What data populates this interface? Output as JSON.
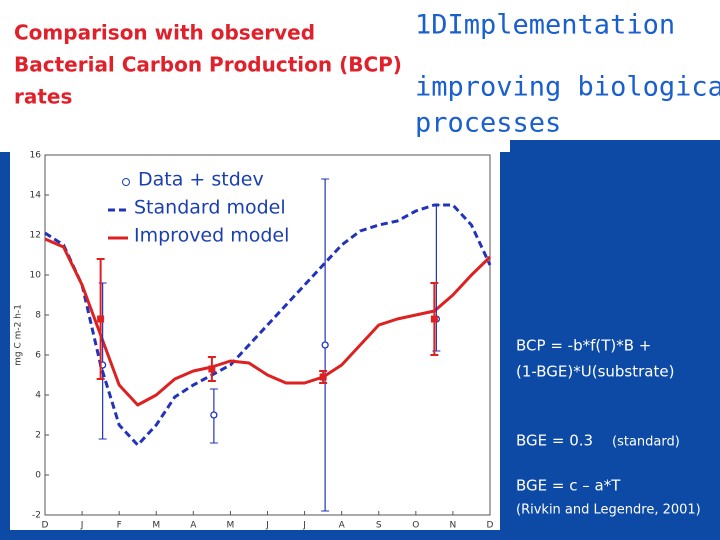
{
  "chart_data": {
    "type": "line",
    "title_lines": [
      "Comparison with observed",
      "Bacterial Carbon Production (BCP)",
      "rates"
    ],
    "subtitle_lines": [
      "1DImplementation",
      "improving biological",
      "processes"
    ],
    "y_label": "mg C m-2 h-1",
    "xlim": [
      0,
      12
    ],
    "xticks": [
      {
        "value": 0,
        "label": "D"
      },
      {
        "value": 1,
        "label": "J"
      },
      {
        "value": 2,
        "label": "F"
      },
      {
        "value": 3,
        "label": "M"
      },
      {
        "value": 4,
        "label": "A"
      },
      {
        "value": 5,
        "label": "M"
      },
      {
        "value": 6,
        "label": "J"
      },
      {
        "value": 7,
        "label": "J"
      },
      {
        "value": 8,
        "label": "A"
      },
      {
        "value": 9,
        "label": "S"
      },
      {
        "value": 10,
        "label": "O"
      },
      {
        "value": 11,
        "label": "N"
      },
      {
        "value": 12,
        "label": "D"
      }
    ],
    "ylim": [
      -2,
      16
    ],
    "yticks": [
      -2,
      0,
      2,
      4,
      6,
      8,
      10,
      12,
      14,
      16
    ],
    "x": [
      0,
      0.5,
      1,
      1.5,
      2,
      2.5,
      3,
      3.5,
      4,
      4.5,
      5,
      5.5,
      6,
      6.5,
      7,
      7.5,
      8,
      8.5,
      9,
      9.5,
      10,
      10.5,
      11,
      11.5,
      12
    ],
    "series": [
      {
        "name": "Standard model",
        "color": "#2233bb",
        "dashed": true,
        "values": [
          12.1,
          11.5,
          9.5,
          5.5,
          2.5,
          1.5,
          2.5,
          3.9,
          4.5,
          5.0,
          5.5,
          6.5,
          7.5,
          8.5,
          9.5,
          10.5,
          11.5,
          12.2,
          12.5,
          12.7,
          13.2,
          13.5,
          13.5,
          12.5,
          10.5
        ]
      },
      {
        "name": "Improved model",
        "color": "#dd2020",
        "dashed": false,
        "values": [
          11.8,
          11.4,
          9.5,
          7.0,
          4.5,
          3.5,
          4.0,
          4.8,
          5.2,
          5.4,
          5.7,
          5.6,
          5.0,
          4.6,
          4.6,
          4.9,
          5.5,
          6.5,
          7.5,
          7.8,
          8.0,
          8.2,
          9.0,
          10.0,
          10.9
        ]
      }
    ],
    "data": {
      "name": "Data + stdev",
      "color": "#dd2020",
      "x": [
        1.5,
        4.5,
        7.5,
        10.5
      ],
      "values": [
        7.8,
        5.3,
        4.9,
        7.8
      ],
      "errors": [
        3.0,
        0.6,
        0.3,
        1.8
      ],
      "standard_values": [
        5.5,
        3.0,
        6.5,
        7.8
      ],
      "standard_low": [
        1.8,
        1.6,
        -1.8,
        6.2
      ],
      "standard_high": [
        9.6,
        4.3,
        14.8,
        13.5
      ],
      "standard_color": "#2233bb"
    },
    "annotations": [
      "BCP = -b*f(T)*B +",
      "(1-BGE)*U(substrate)",
      "BGE = 0.3",
      "(standard)",
      "BGE = c – a*T",
      "(Rivkin and Legendre, 2001)"
    ]
  }
}
